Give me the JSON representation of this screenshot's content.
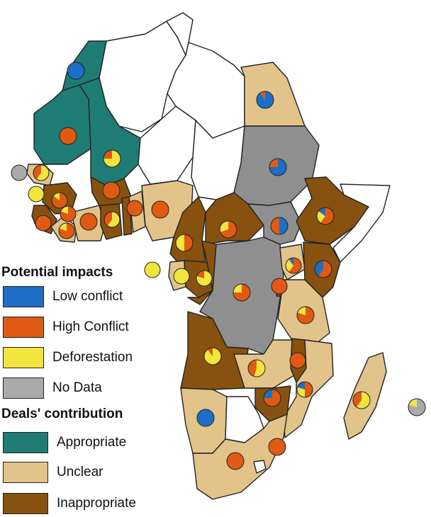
{
  "colors": {
    "appropriate": "#1e7c74",
    "unclear": "#e2c48b",
    "inappropriate": "#87520f",
    "nodata": "#8f8f8f",
    "blank": "#ffffff",
    "low_conflict": "#1d6ec6",
    "high_conflict": "#e05a13",
    "deforestation": "#f2e53e",
    "no_data_pie": "#aaaaaa"
  },
  "legend": {
    "impacts_title": "Potential impacts",
    "impacts": [
      {
        "label": "Low conflict",
        "color_key": "low_conflict"
      },
      {
        "label": "High Conflict",
        "color_key": "high_conflict"
      },
      {
        "label": "Deforestation",
        "color_key": "deforestation"
      },
      {
        "label": "No Data",
        "color_key": "no_data_pie"
      }
    ],
    "contribution_title": "Deals' contribution",
    "contributions": [
      {
        "label": "Appropriate",
        "color_key": "appropriate"
      },
      {
        "label": "Unclear",
        "color_key": "unclear"
      },
      {
        "label": "Inappropriate",
        "color_key": "inappropriate"
      }
    ]
  },
  "pies": [
    {
      "region": "morocco",
      "shares": {
        "low_conflict": 1
      }
    },
    {
      "region": "mauritania",
      "shares": {
        "high_conflict": 1
      }
    },
    {
      "region": "mali",
      "shares": {
        "deforestation": 0.75,
        "high_conflict": 0.25
      }
    },
    {
      "region": "cape-verde",
      "shares": {
        "no_data": 1
      }
    },
    {
      "region": "senegal",
      "shares": {
        "deforestation": 0.6,
        "high_conflict": 0.4
      }
    },
    {
      "region": "gambia",
      "shares": {
        "deforestation": 1
      }
    },
    {
      "region": "guinea-bissau",
      "shares": {
        "high_conflict": 0.85,
        "deforestation": 0.15
      }
    },
    {
      "region": "guinea",
      "shares": {
        "high_conflict": 0.8,
        "deforestation": 0.2
      }
    },
    {
      "region": "sierra-leone",
      "shares": {
        "high_conflict": 1
      }
    },
    {
      "region": "liberia",
      "shares": {
        "high_conflict": 0.8,
        "deforestation": 0.2
      }
    },
    {
      "region": "ivory-coast",
      "shares": {
        "high_conflict": 1
      }
    },
    {
      "region": "burkina-faso",
      "shares": {
        "high_conflict": 1
      }
    },
    {
      "region": "ghana",
      "shares": {
        "deforestation": 0.6,
        "high_conflict": 0.4
      }
    },
    {
      "region": "togo",
      "shares": {
        "high_conflict": 1
      }
    },
    {
      "region": "benin",
      "shares": {
        "high_conflict": 0.8,
        "deforestation": 0.2
      }
    },
    {
      "region": "niger",
      "shares": {
        "high_conflict": 1
      }
    },
    {
      "region": "nigeria",
      "shares": {
        "high_conflict": 0.85,
        "deforestation": 0.15
      }
    },
    {
      "region": "egypt",
      "shares": {
        "low_conflict": 0.9,
        "high_conflict": 0.1
      }
    },
    {
      "region": "sudan",
      "shares": {
        "low_conflict": 0.75,
        "high_conflict": 0.25
      }
    },
    {
      "region": "chad",
      "shares": {
        "high_conflict": 0.7,
        "deforestation": 0.3
      }
    },
    {
      "region": "cameroon",
      "shares": {
        "high_conflict": 0.5,
        "deforestation": 0.5
      }
    },
    {
      "region": "car",
      "shares": {
        "deforestation": 0.65,
        "high_conflict": 0.35
      }
    },
    {
      "region": "south-sudan",
      "shares": {
        "low_conflict": 0.5,
        "high_conflict": 0.5
      }
    },
    {
      "region": "ethiopia",
      "shares": {
        "high_conflict": 0.6,
        "deforestation": 0.25,
        "low_conflict": 0.15
      }
    },
    {
      "region": "bioko",
      "shares": {
        "deforestation": 1
      }
    },
    {
      "region": "equatorial-guinea",
      "shares": {
        "deforestation": 1
      }
    },
    {
      "region": "gabon",
      "shares": {
        "deforestation": 0.8,
        "high_conflict": 0.2
      }
    },
    {
      "region": "congo",
      "shares": {
        "deforestation": 0.7,
        "high_conflict": 0.3
      }
    },
    {
      "region": "drc",
      "shares": {
        "high_conflict": 0.75,
        "deforestation": 0.25
      }
    },
    {
      "region": "uganda",
      "shares": {
        "high_conflict": 0.6,
        "deforestation": 0.3,
        "low_conflict": 0.1
      }
    },
    {
      "region": "kenya",
      "shares": {
        "high_conflict": 0.6,
        "low_conflict": 0.4
      }
    },
    {
      "region": "rwanda",
      "shares": {
        "high_conflict": 1
      }
    },
    {
      "region": "tanzania",
      "shares": {
        "high_conflict": 0.8,
        "deforestation": 0.2
      }
    },
    {
      "region": "angola",
      "shares": {
        "deforestation": 0.9,
        "high_conflict": 0.1
      }
    },
    {
      "region": "zambia",
      "shares": {
        "deforestation": 0.55,
        "high_conflict": 0.45
      }
    },
    {
      "region": "malawi",
      "shares": {
        "high_conflict": 1
      }
    },
    {
      "region": "mozambique",
      "shares": {
        "high_conflict": 0.5,
        "deforestation": 0.3,
        "low_conflict": 0.2
      }
    },
    {
      "region": "zimbabwe",
      "shares": {
        "high_conflict": 0.75,
        "low_conflict": 0.25
      }
    },
    {
      "region": "madagascar",
      "shares": {
        "deforestation": 0.6,
        "high_conflict": 0.4
      }
    },
    {
      "region": "mauritius",
      "shares": {
        "no_data": 0.8,
        "deforestation": 0.2
      }
    },
    {
      "region": "namibia",
      "shares": {
        "low_conflict": 1
      }
    },
    {
      "region": "south-africa",
      "shares": {
        "high_conflict": 1
      }
    },
    {
      "region": "south-africa-east",
      "shares": {
        "high_conflict": 1
      }
    }
  ]
}
